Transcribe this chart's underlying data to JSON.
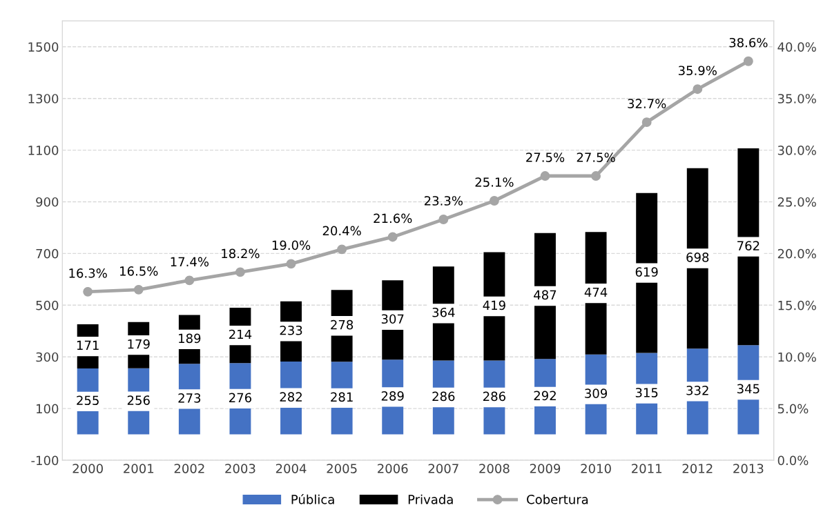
{
  "chart_data": {
    "type": "bar",
    "stacked": true,
    "categories": [
      "2000",
      "2001",
      "2002",
      "2003",
      "2004",
      "2005",
      "2006",
      "2007",
      "2008",
      "2009",
      "2010",
      "2011",
      "2012",
      "2013"
    ],
    "series": [
      {
        "name": "Pública",
        "color": "#4472c4",
        "values": [
          255,
          256,
          273,
          276,
          282,
          281,
          289,
          286,
          286,
          292,
          309,
          315,
          332,
          345
        ]
      },
      {
        "name": "Privada",
        "color": "#000000",
        "values": [
          171,
          179,
          189,
          214,
          233,
          278,
          307,
          364,
          419,
          487,
          474,
          619,
          698,
          762
        ]
      },
      {
        "name": "Cobertura",
        "type": "line",
        "axis": "y2",
        "color": "#a5a5a5",
        "marker": "circle",
        "values": [
          16.3,
          16.5,
          17.4,
          18.2,
          19.0,
          20.4,
          21.6,
          23.3,
          25.1,
          27.5,
          27.5,
          32.7,
          35.9,
          38.6
        ],
        "value_labels": [
          "16.3%",
          "16.5%",
          "17.4%",
          "18.2%",
          "19.0%",
          "20.4%",
          "21.6%",
          "23.3%",
          "25.1%",
          "27.5%",
          "27.5%",
          "32.7%",
          "35.9%",
          "38.6%"
        ]
      }
    ],
    "data_labels": true,
    "ylim": [
      -100,
      1600
    ],
    "yticks": [
      -100,
      100,
      300,
      500,
      700,
      900,
      1100,
      1300,
      1500
    ],
    "y2lim": [
      0,
      42.5
    ],
    "y2ticks": [
      {
        "value": 0,
        "label": "0.0%"
      },
      {
        "value": 5,
        "label": "5.0%"
      },
      {
        "value": 10,
        "label": "10.0%"
      },
      {
        "value": 15,
        "label": "15.0%"
      },
      {
        "value": 20,
        "label": "20.0%"
      },
      {
        "value": 25,
        "label": "25.0%"
      },
      {
        "value": 30,
        "label": "30.0%"
      },
      {
        "value": 35,
        "label": "35.0%"
      },
      {
        "value": 40,
        "label": "40.0%"
      }
    ],
    "grid": "y",
    "legend": "bottom"
  }
}
